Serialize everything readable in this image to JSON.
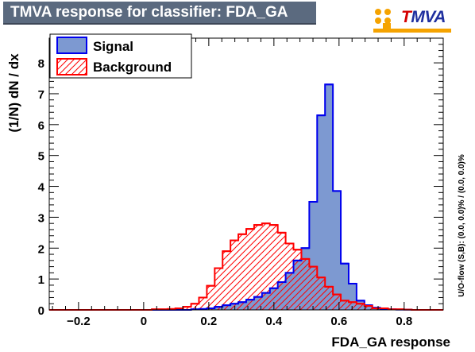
{
  "header": {
    "title": "TMVA response for classifier: FDA_GA"
  },
  "logo": {
    "text_first": "T",
    "text_rest": "MVA",
    "first_color": "#d40000",
    "rest_color": "#1f2f9f",
    "accent": "#f5a300"
  },
  "side_note": "U/O-flow (S,B): (0.0, 0.0)% / (0.0, 0.0)%",
  "colors": {
    "signal_fill": "#7d99d1",
    "signal_line": "#0000ee",
    "background_line": "#ff0000",
    "axis": "#000000"
  },
  "chart_data": {
    "type": "histogram",
    "title": "TMVA response for classifier: FDA_GA",
    "xlabel": "FDA_GA response",
    "ylabel": "(1/N)  dN  /  dx",
    "xlim": [
      -0.29,
      0.92
    ],
    "ylim": [
      0,
      8.8
    ],
    "x_ticks": [
      -0.2,
      0,
      0.2,
      0.4,
      0.6,
      0.8
    ],
    "x_tick_labels": [
      "−0.2",
      "0",
      "0.2",
      "0.4",
      "0.6",
      "0.8"
    ],
    "y_ticks": [
      0,
      1,
      2,
      3,
      4,
      5,
      6,
      7,
      8
    ],
    "y_tick_labels": [
      "0",
      "1",
      "2",
      "3",
      "4",
      "5",
      "6",
      "7",
      "8"
    ],
    "bin_edges": [
      -0.29,
      -0.2658,
      -0.2416,
      -0.2174,
      -0.1932,
      -0.169,
      -0.1448,
      -0.1206,
      -0.0964,
      -0.0722,
      -0.048,
      -0.0238,
      0.0004,
      0.0246,
      0.0488,
      0.073,
      0.0972,
      0.1214,
      0.1456,
      0.1698,
      0.194,
      0.2182,
      0.2424,
      0.2666,
      0.2908,
      0.315,
      0.3392,
      0.3634,
      0.3876,
      0.4118,
      0.436,
      0.4602,
      0.4844,
      0.5086,
      0.5328,
      0.557,
      0.5812,
      0.6054,
      0.6296,
      0.6538,
      0.678,
      0.7022,
      0.7264,
      0.7506,
      0.7748,
      0.799,
      0.8232,
      0.8474,
      0.8716,
      0.8958,
      0.92
    ],
    "series": [
      {
        "name": "Signal",
        "style": "filled",
        "values": [
          0,
          0,
          0,
          0,
          0,
          0,
          0,
          0,
          0,
          0,
          0,
          0,
          0,
          0,
          0,
          0,
          0,
          0,
          0.02,
          0.03,
          0.05,
          0.1,
          0.15,
          0.2,
          0.25,
          0.33,
          0.42,
          0.55,
          0.7,
          0.9,
          1.2,
          1.6,
          2.0,
          3.5,
          6.3,
          7.3,
          3.85,
          1.5,
          0.85,
          0.3,
          0.15,
          0.07,
          0.04,
          0.02,
          0.01,
          0.01,
          0,
          0,
          0,
          0
        ]
      },
      {
        "name": "Background",
        "style": "hatched",
        "values": [
          0,
          0,
          0,
          0,
          0,
          0,
          0,
          0,
          0,
          0,
          0,
          0,
          0,
          0.02,
          0.02,
          0.03,
          0.05,
          0.1,
          0.2,
          0.4,
          0.78,
          1.35,
          1.9,
          2.25,
          2.45,
          2.62,
          2.75,
          2.8,
          2.75,
          2.5,
          2.15,
          1.95,
          1.65,
          1.4,
          1.05,
          0.75,
          0.5,
          0.3,
          0.25,
          0.2,
          0.13,
          0.05,
          0.05,
          0.02,
          0.02,
          0.01,
          0,
          0,
          0,
          0
        ]
      }
    ],
    "legend": {
      "placement": "top-left",
      "entries": [
        "Signal",
        "Background"
      ]
    },
    "grid": false
  }
}
